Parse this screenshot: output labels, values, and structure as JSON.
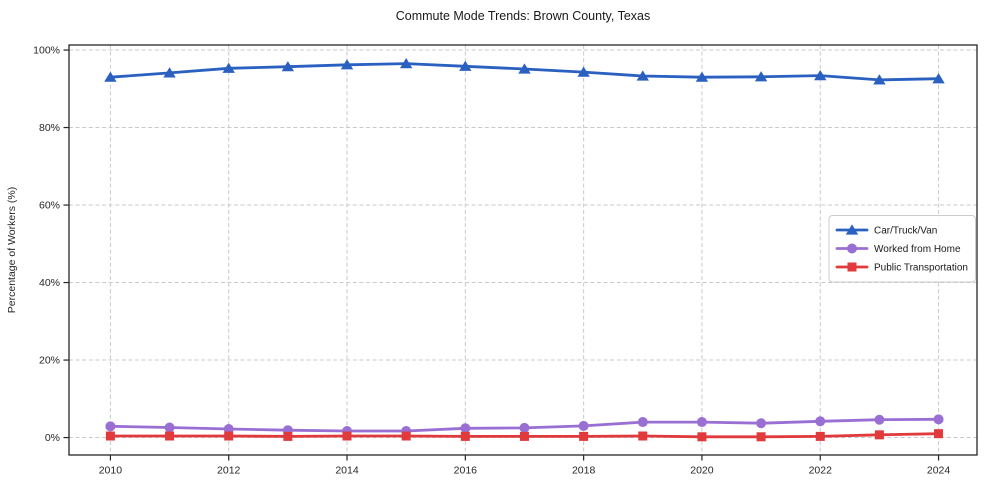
{
  "chart_data": {
    "type": "line",
    "title": "Commute Mode Trends: Brown County, Texas",
    "xlabel": "",
    "ylabel": "Percentage of Workers (%)",
    "x": [
      2010,
      2011,
      2012,
      2013,
      2014,
      2015,
      2016,
      2017,
      2018,
      2019,
      2020,
      2021,
      2022,
      2023,
      2024
    ],
    "series": [
      {
        "name": "Car/Truck/Van",
        "marker": "triangle",
        "color": "#2a60c0",
        "values": [
          93.0,
          94.1,
          95.3,
          95.7,
          96.2,
          96.5,
          95.8,
          95.1,
          94.3,
          93.3,
          93.0,
          93.1,
          93.4,
          92.3,
          92.6
        ]
      },
      {
        "name": "Worked from Home",
        "marker": "circle",
        "color": "#9a6fd4",
        "values": [
          2.9,
          2.6,
          2.2,
          1.9,
          1.7,
          1.7,
          2.4,
          2.5,
          3.0,
          4.0,
          4.0,
          3.7,
          4.2,
          4.6,
          4.7
        ]
      },
      {
        "name": "Public Transportation",
        "marker": "square",
        "color": "#e03a3c",
        "values": [
          0.4,
          0.4,
          0.4,
          0.3,
          0.4,
          0.4,
          0.3,
          0.3,
          0.3,
          0.4,
          0.2,
          0.2,
          0.3,
          0.7,
          1.0
        ]
      }
    ],
    "xlim": [
      2009.3,
      2024.65
    ],
    "ylim": [
      -4.5,
      101.3
    ],
    "yticks": [
      0,
      20,
      40,
      60,
      80,
      100
    ],
    "ytick_labels": [
      "0%",
      "20%",
      "40%",
      "60%",
      "80%",
      "100%"
    ],
    "xticks": [
      2010,
      2012,
      2014,
      2016,
      2018,
      2020,
      2022,
      2024
    ],
    "xtick_labels": [
      "2010",
      "2012",
      "2014",
      "2016",
      "2018",
      "2020",
      "2022",
      "2024"
    ],
    "grid": true,
    "grid_style": "dashed",
    "grid_color": "#c9c9c9",
    "frame_color": "#262626",
    "legend_position": "center right"
  }
}
